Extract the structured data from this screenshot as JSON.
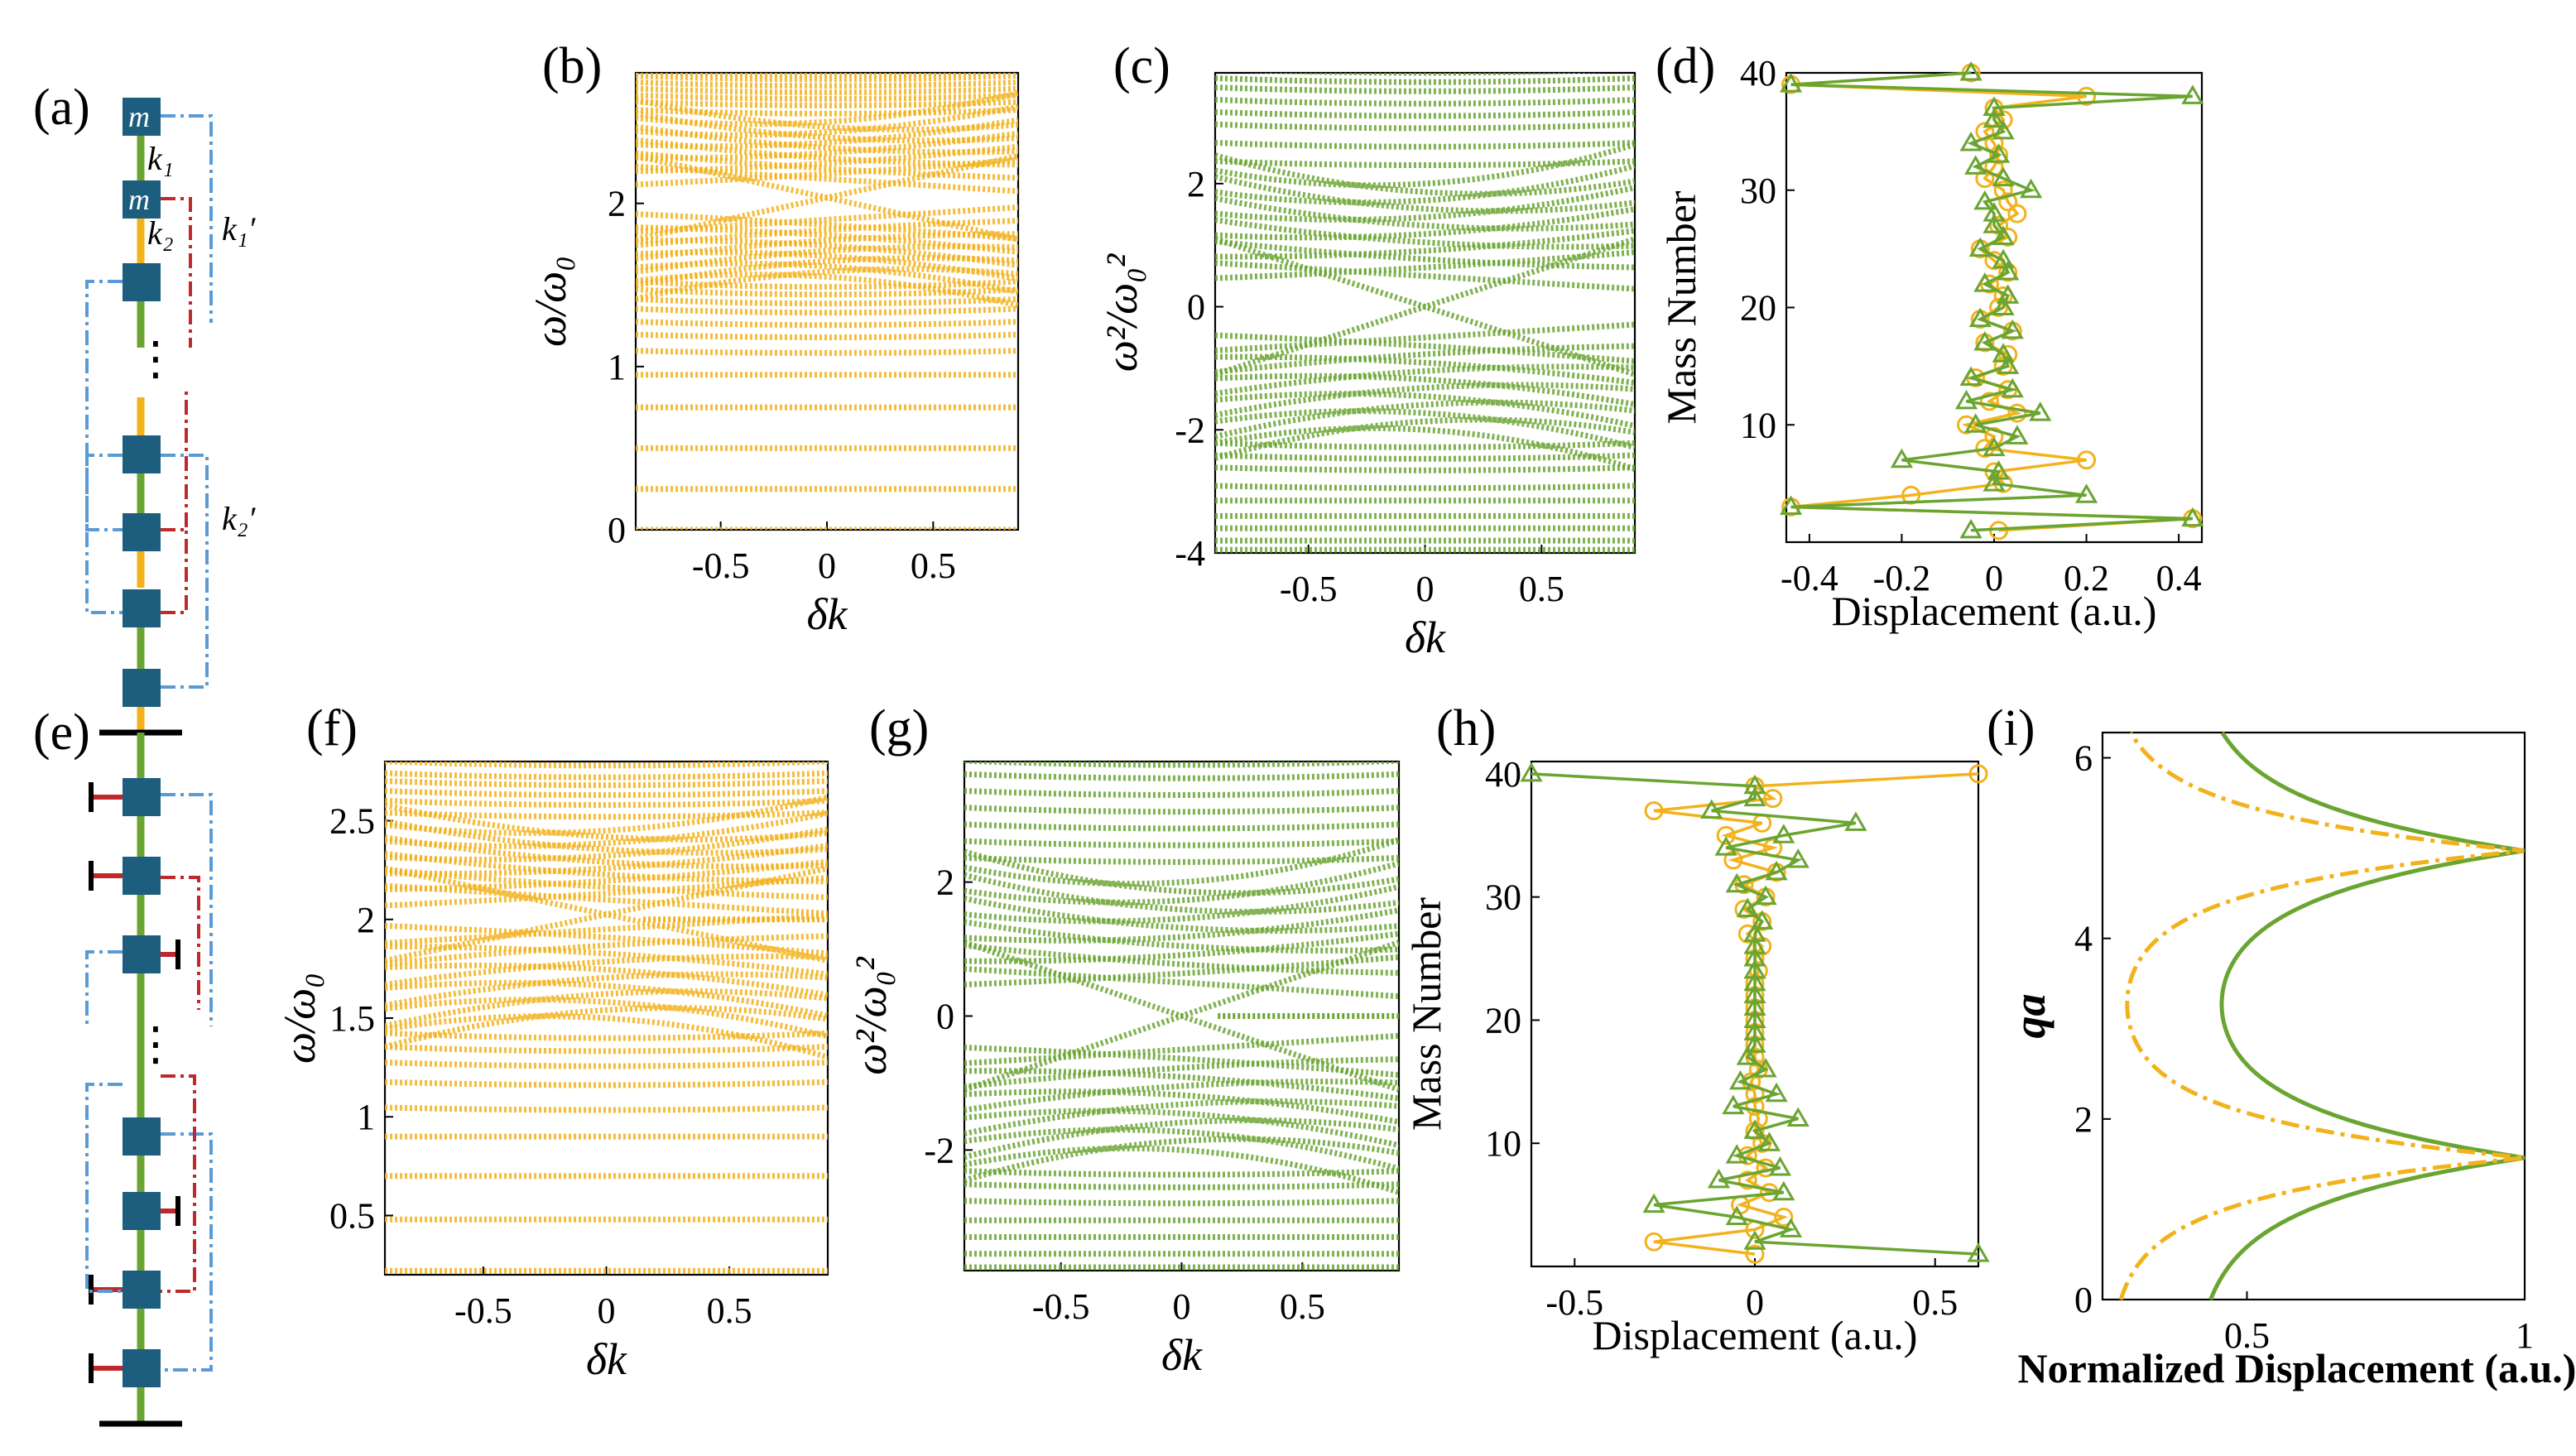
{
  "colors": {
    "orange": "#F2B21C",
    "green": "#6AA532",
    "mass": "#1D5E7E",
    "blue_dash": "#5B9BD5",
    "red_dash": "#C0292B",
    "ground": "#000000"
  },
  "panel_labels": {
    "a": "(a)",
    "b": "(b)",
    "c": "(c)",
    "d": "(d)",
    "e": "(e)",
    "f": "(f)",
    "g": "(g)",
    "h": "(h)",
    "i": "(i)"
  },
  "schematic": {
    "mass_label": "m",
    "k1": "k₁",
    "k2": "k₂",
    "k1p": "k₁′",
    "k2p": "k₂′",
    "ellipsis": "⋮"
  },
  "chart_data": [
    {
      "id": "b",
      "type": "scatter",
      "mode": "band",
      "xlabel": "δk",
      "ylabel": "ω/ω₀",
      "xlim": [
        -0.9,
        0.9
      ],
      "ylim": [
        0,
        2.8
      ],
      "xticks": [
        -0.5,
        0,
        0.5
      ],
      "yticks": [
        0,
        1,
        2
      ],
      "xticklabels": [
        "-0.5",
        "0",
        "0.5"
      ],
      "yticklabels": [
        "0",
        "1",
        "2"
      ],
      "lower_flat": [
        0.0,
        0.25,
        0.5,
        0.75,
        0.95
      ],
      "lower_curved": [
        1.1,
        1.2,
        1.28,
        1.36,
        1.42,
        1.48,
        1.53
      ],
      "lower_bulk": [
        1.55,
        1.9
      ],
      "gap": [
        1.95,
        2.12
      ],
      "upper_bulk": [
        2.15,
        2.5
      ],
      "upper_curved": [
        2.55,
        2.6,
        2.64,
        2.68,
        2.72,
        2.76,
        2.79
      ],
      "edge_state": true,
      "color_key": "orange"
    },
    {
      "id": "c",
      "type": "scatter",
      "mode": "band",
      "xlabel": "δk",
      "ylabel": "ω²/ω₀²",
      "xlim": [
        -0.9,
        0.9
      ],
      "ylim": [
        -4,
        3.8
      ],
      "xticks": [
        -0.5,
        0,
        0.5
      ],
      "yticks": [
        -4,
        -2,
        0,
        2
      ],
      "xticklabels": [
        "-0.5",
        "0",
        "0.5"
      ],
      "yticklabels": [
        "-4",
        "-2",
        "0",
        "2"
      ],
      "lower_flat": [
        -3.95,
        -3.8,
        -3.6,
        -3.4,
        -3.15
      ],
      "lower_curved": [
        -2.9,
        -2.6,
        -2.4,
        -2.2
      ],
      "lower_bulk": [
        -2.0,
        -0.5
      ],
      "gap": [
        -0.5,
        0.5
      ],
      "upper_bulk": [
        0.5,
        2.0
      ],
      "upper_curved": [
        2.3,
        2.6,
        2.9,
        3.1,
        3.3,
        3.5,
        3.65,
        3.8
      ],
      "edge_state": true,
      "color_key": "green"
    },
    {
      "id": "d",
      "type": "line",
      "xlabel": "Displacement (a.u.)",
      "ylabel": "Mass Number",
      "xlim": [
        -0.45,
        0.45
      ],
      "ylim": [
        0,
        40
      ],
      "xticks": [
        -0.4,
        -0.2,
        0,
        0.2,
        0.4
      ],
      "yticks": [
        10,
        20,
        30,
        40
      ],
      "xticklabels": [
        "-0.4",
        "-0.2",
        "0",
        "0.2",
        "0.4"
      ],
      "yticklabels": [
        "10",
        "20",
        "30",
        "40"
      ],
      "series": [
        {
          "name": "circle",
          "color_key": "orange",
          "marker": "o",
          "x": [
            0.01,
            0.43,
            -0.44,
            -0.18,
            0.02,
            0.0,
            0.2,
            -0.02,
            0.0,
            -0.06,
            0.05,
            -0.01,
            0.03,
            -0.04,
            0.02,
            0.03,
            -0.02,
            0.04,
            -0.03,
            0.01,
            0.02,
            -0.01,
            0.03,
            0.0,
            -0.03,
            0.03,
            0.01,
            0.05,
            0.03,
            0.02,
            -0.02,
            0.0,
            0.01,
            0.0,
            -0.02,
            0.02,
            0.0,
            0.2,
            -0.44,
            -0.05
          ],
          "y": [
            1,
            2,
            3,
            4,
            5,
            6,
            7,
            8,
            9,
            10,
            11,
            12,
            13,
            14,
            15,
            16,
            17,
            18,
            19,
            20,
            21,
            22,
            23,
            24,
            25,
            26,
            27,
            28,
            29,
            30,
            31,
            32,
            33,
            34,
            35,
            36,
            37,
            38,
            39,
            40
          ]
        },
        {
          "name": "triangle",
          "color_key": "green",
          "marker": "^",
          "x": [
            -0.05,
            0.43,
            -0.44,
            0.2,
            0.0,
            0.01,
            -0.2,
            0.0,
            0.05,
            -0.04,
            0.1,
            -0.06,
            0.04,
            -0.05,
            0.03,
            0.02,
            -0.02,
            0.04,
            -0.03,
            0.02,
            0.03,
            -0.02,
            0.03,
            0.02,
            -0.03,
            0.02,
            0.0,
            0.0,
            -0.02,
            0.08,
            0.02,
            -0.04,
            0.01,
            -0.05,
            0.02,
            0.0,
            0.0,
            0.43,
            -0.44,
            -0.05
          ],
          "y": [
            1,
            2,
            3,
            4,
            5,
            6,
            7,
            8,
            9,
            10,
            11,
            12,
            13,
            14,
            15,
            16,
            17,
            18,
            19,
            20,
            21,
            22,
            23,
            24,
            25,
            26,
            27,
            28,
            29,
            30,
            31,
            32,
            33,
            34,
            35,
            36,
            37,
            38,
            39,
            40
          ]
        }
      ]
    },
    {
      "id": "f",
      "type": "scatter",
      "mode": "band",
      "xlabel": "δk",
      "ylabel": "ω/ω₀",
      "xlim": [
        -0.9,
        0.9
      ],
      "ylim": [
        0.2,
        2.8
      ],
      "xticks": [
        -0.5,
        0,
        0.5
      ],
      "yticks": [
        0.5,
        1,
        1.5,
        2,
        2.5
      ],
      "xticklabels": [
        "-0.5",
        "0",
        "0.5"
      ],
      "yticklabels": [
        "0.5",
        "1",
        "1.5",
        "2",
        "2.5"
      ],
      "lower_flat": [
        0.22,
        0.48,
        0.7,
        0.9
      ],
      "lower_curved": [
        1.05,
        1.18,
        1.28,
        1.36,
        1.43
      ],
      "lower_bulk": [
        1.5,
        1.95
      ],
      "gap": [
        1.95,
        2.1
      ],
      "upper_bulk": [
        2.1,
        2.45
      ],
      "upper_curved": [
        2.52,
        2.58,
        2.63,
        2.68,
        2.72,
        2.78
      ],
      "edge_state": true,
      "edge_flat": 2.0,
      "color_key": "orange"
    },
    {
      "id": "g",
      "type": "scatter",
      "mode": "band",
      "xlabel": "δk",
      "ylabel": "ω²/ω₀²",
      "xlim": [
        -0.9,
        0.9
      ],
      "ylim": [
        -3.8,
        3.8
      ],
      "xticks": [
        -0.5,
        0,
        0.5
      ],
      "yticks": [
        -2,
        0,
        2
      ],
      "xticklabels": [
        "-0.5",
        "0",
        "0.5"
      ],
      "yticklabels": [
        "-2",
        "0",
        "2"
      ],
      "lower_flat": [
        -3.75,
        -3.55,
        -3.3,
        -3.05
      ],
      "lower_curved": [
        -2.75,
        -2.5,
        -2.3
      ],
      "lower_bulk": [
        -2.0,
        -0.5
      ],
      "gap": [
        -0.5,
        0.5
      ],
      "upper_bulk": [
        0.5,
        2.0
      ],
      "upper_curved": [
        2.3,
        2.55,
        2.8,
        3.05,
        3.3,
        3.55,
        3.75
      ],
      "edge_state": true,
      "edge_flat": 0.0,
      "color_key": "green"
    },
    {
      "id": "h",
      "type": "line",
      "xlabel": "Displacement (a.u.)",
      "ylabel": "Mass Number",
      "xlim": [
        -0.62,
        0.62
      ],
      "ylim": [
        0,
        41
      ],
      "xticks": [
        -0.5,
        0,
        0.5
      ],
      "yticks": [
        10,
        20,
        30,
        40
      ],
      "xticklabels": [
        "-0.5",
        "0",
        "0.5"
      ],
      "yticklabels": [
        "10",
        "20",
        "30",
        "40"
      ],
      "series": [
        {
          "name": "circle",
          "color_key": "orange",
          "marker": "o",
          "x": [
            0.0,
            -0.28,
            0.0,
            0.08,
            -0.04,
            0.04,
            -0.02,
            0.03,
            -0.02,
            0.02,
            0.0,
            0.01,
            0.0,
            0.0,
            -0.01,
            0.01,
            0.0,
            0.0,
            0.0,
            0.0,
            0.0,
            0.0,
            0.0,
            0.01,
            0.0,
            0.02,
            -0.02,
            0.02,
            -0.03,
            0.03,
            -0.03,
            0.06,
            -0.06,
            0.05,
            -0.08,
            0.02,
            -0.28,
            0.05,
            0.0,
            0.62
          ],
          "y": [
            1,
            2,
            3,
            4,
            5,
            6,
            7,
            8,
            9,
            10,
            11,
            12,
            13,
            14,
            15,
            16,
            17,
            18,
            19,
            20,
            21,
            22,
            23,
            24,
            25,
            26,
            27,
            28,
            29,
            30,
            31,
            32,
            33,
            34,
            35,
            36,
            37,
            38,
            39,
            40
          ]
        },
        {
          "name": "triangle",
          "color_key": "green",
          "marker": "^",
          "x": [
            0.62,
            0.0,
            0.1,
            -0.05,
            -0.28,
            0.08,
            -0.1,
            0.07,
            -0.05,
            0.04,
            0.0,
            0.12,
            -0.06,
            0.06,
            -0.04,
            0.03,
            -0.02,
            0.0,
            0.0,
            0.0,
            0.0,
            0.0,
            0.0,
            0.0,
            0.0,
            0.0,
            0.0,
            0.02,
            -0.02,
            0.03,
            -0.05,
            0.06,
            0.12,
            -0.08,
            0.08,
            0.28,
            -0.12,
            0.0,
            0.0,
            -0.62
          ],
          "y": [
            1,
            2,
            3,
            4,
            5,
            6,
            7,
            8,
            9,
            10,
            11,
            12,
            13,
            14,
            15,
            16,
            17,
            18,
            19,
            20,
            21,
            22,
            23,
            24,
            25,
            26,
            27,
            28,
            29,
            30,
            31,
            32,
            33,
            34,
            35,
            36,
            37,
            38,
            39,
            40
          ]
        }
      ]
    },
    {
      "id": "i",
      "type": "line",
      "xlabel": "Normalized Displacement (a.u.)",
      "ylabel": "qa",
      "xlim": [
        0.24,
        1.0
      ],
      "ylim": [
        0,
        6.28
      ],
      "xticks": [
        0.5,
        1
      ],
      "yticks": [
        0,
        2,
        4,
        6
      ],
      "xticklabels": [
        "0.5",
        "1"
      ],
      "yticklabels": [
        "0",
        "2",
        "4",
        "6"
      ],
      "series": [
        {
          "name": "solid",
          "color_key": "green",
          "style": "solid",
          "min": 0.4,
          "peaks": [
            1.57,
            4.97
          ],
          "width": 0.55
        },
        {
          "name": "dashdot",
          "color_key": "orange",
          "style": "dashdot",
          "min": 0.25,
          "peaks": [
            1.57,
            4.97
          ],
          "width": 0.45
        }
      ]
    }
  ]
}
